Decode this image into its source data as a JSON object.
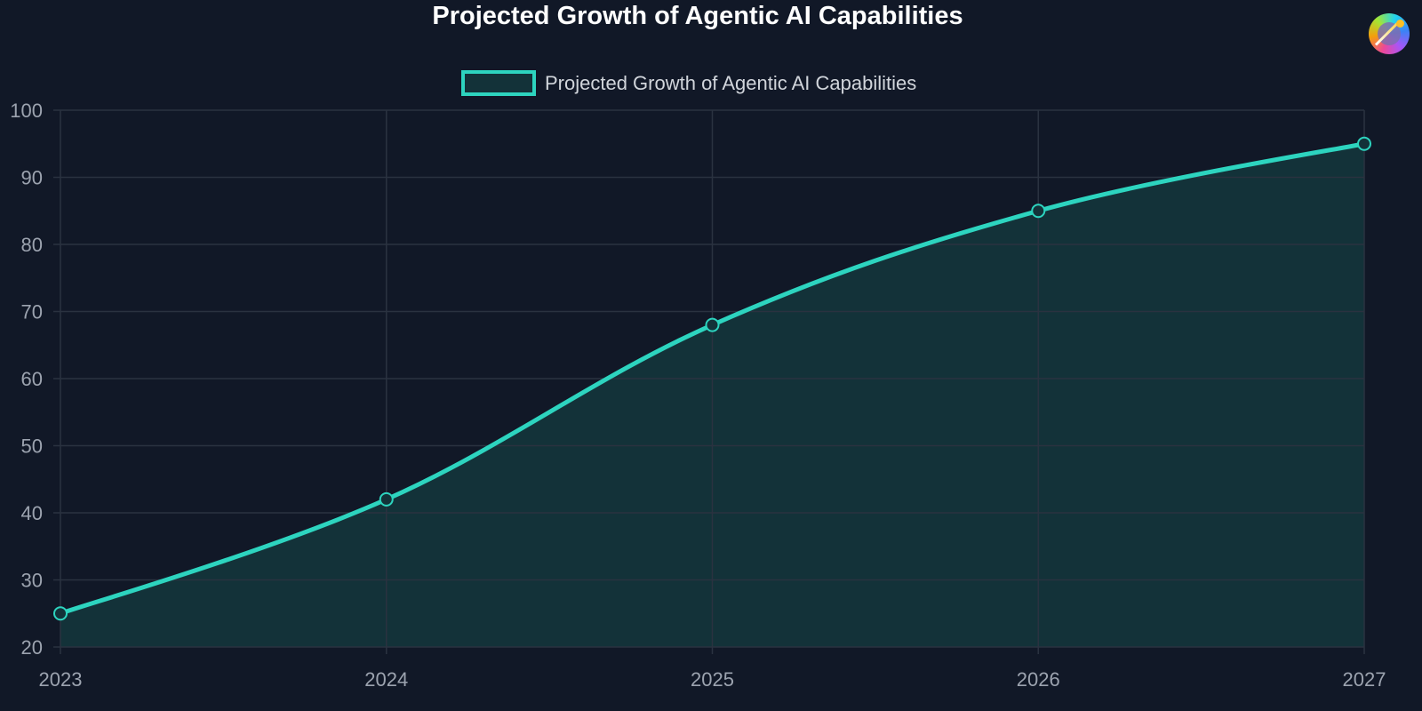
{
  "chart_data": {
    "type": "line",
    "title": "Projected Growth of Agentic AI Capabilities",
    "categories": [
      "2023",
      "2024",
      "2025",
      "2026",
      "2027"
    ],
    "series": [
      {
        "name": "Projected Growth of Agentic AI Capabilities",
        "values": [
          25,
          42,
          68,
          85,
          95
        ]
      }
    ],
    "ylim": [
      20,
      100
    ],
    "yticks": [
      20,
      30,
      40,
      50,
      60,
      70,
      80,
      90,
      100
    ],
    "grid": true,
    "fill": true,
    "legend": "top",
    "colors": {
      "line": "#2dd4bf",
      "fill": "#133239",
      "grid": "#2a3240",
      "background": "#111827"
    }
  },
  "logo_icon": "magic-wand-icon"
}
